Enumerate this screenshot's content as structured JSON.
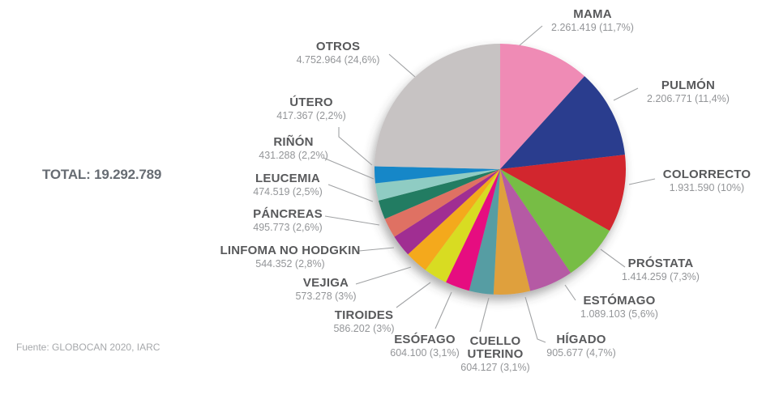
{
  "total_label": "TOTAL: 19.292.789",
  "source_note": "Fuente: GLOBOCAN 2020, IARC",
  "chart_data": {
    "type": "pie",
    "title": "",
    "total": 19292789,
    "start_angle_deg": -90,
    "direction": "clockwise",
    "legend": "none (labels with leader lines around pie)",
    "slices": [
      {
        "label": "MAMA",
        "value": 2261419,
        "percent": 11.7,
        "value_text": "2.261.419 (11,7%)",
        "color": "#ef8bb5"
      },
      {
        "label": "PULMÓN",
        "value": 2206771,
        "percent": 11.4,
        "value_text": "2.206.771 (11,4%)",
        "color": "#2b3e8e"
      },
      {
        "label": "COLORRECTO",
        "value": 1931590,
        "percent": 10.0,
        "value_text": "1.931.590 (10%)",
        "color": "#d2262d"
      },
      {
        "label": "PRÓSTATA",
        "value": 1414259,
        "percent": 7.3,
        "value_text": "1.414.259 (7,3%)",
        "color": "#77bd44"
      },
      {
        "label": "ESTÓMAGO",
        "value": 1089103,
        "percent": 5.6,
        "value_text": "1.089.103 (5,6%)",
        "color": "#b55aa4"
      },
      {
        "label": "HÍGADO",
        "value": 905677,
        "percent": 4.7,
        "value_text": "905.677 (4,7%)",
        "color": "#dfa03c"
      },
      {
        "label": "CUELLO UTERINO",
        "value": 604127,
        "percent": 3.1,
        "value_text": "604.127 (3,1%)",
        "color": "#579da3"
      },
      {
        "label": "ESÓFAGO",
        "value": 604100,
        "percent": 3.1,
        "value_text": "604.100 (3,1%)",
        "color": "#e60a80"
      },
      {
        "label": "TIROIDES",
        "value": 586202,
        "percent": 3.0,
        "value_text": "586.202 (3%)",
        "color": "#d8dc20"
      },
      {
        "label": "VEJIGA",
        "value": 573278,
        "percent": 3.0,
        "value_text": "573.278 (3%)",
        "color": "#f4a91d"
      },
      {
        "label": "LINFOMA NO HODGKIN",
        "value": 544352,
        "percent": 2.8,
        "value_text": "544.352 (2,8%)",
        "color": "#a02d92"
      },
      {
        "label": "PÁNCREAS",
        "value": 495773,
        "percent": 2.6,
        "value_text": "495.773 (2,6%)",
        "color": "#df7164"
      },
      {
        "label": "LEUCEMIA",
        "value": 474519,
        "percent": 2.5,
        "value_text": "474.519 (2,5%)",
        "color": "#227c62"
      },
      {
        "label": "RIÑÓN",
        "value": 431288,
        "percent": 2.2,
        "value_text": "431.288 (2,2%)",
        "color": "#8fccc3"
      },
      {
        "label": "ÚTERO",
        "value": 417367,
        "percent": 2.2,
        "value_text": "417.367 (2,2%)",
        "color": "#1787c8"
      },
      {
        "label": "OTROS",
        "value": 4752964,
        "percent": 24.6,
        "value_text": "4.752.964 (24,6%)",
        "color": "#c7c3c3"
      }
    ]
  }
}
